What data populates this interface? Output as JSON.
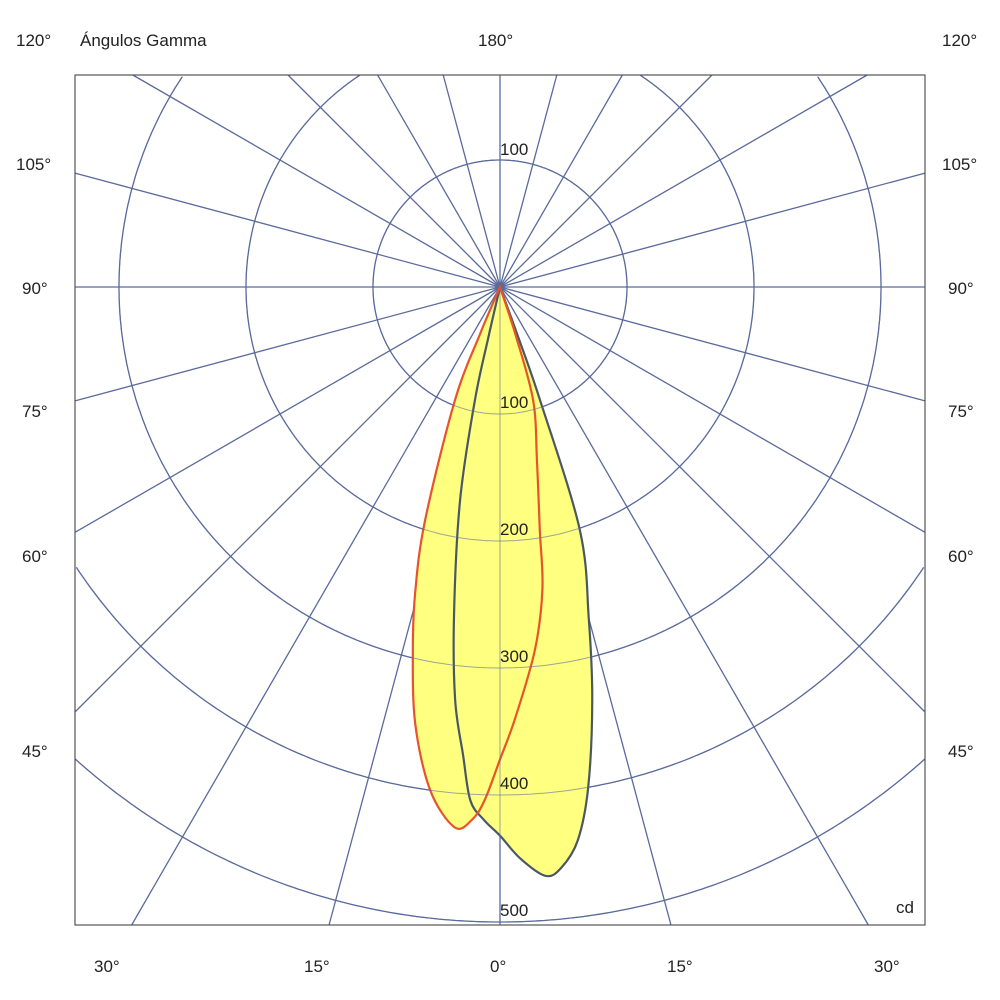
{
  "chart_data": {
    "type": "polar",
    "title": "Ángulos Gamma",
    "unit": "cd",
    "top_label": "180°",
    "radial_ticks": [
      100,
      200,
      300,
      400,
      500
    ],
    "top_radial_tick": "100",
    "angle_step_deg": 15,
    "left_angle_labels": [
      "120°",
      "105°",
      "90°",
      "75°",
      "60°",
      "45°"
    ],
    "right_angle_labels": [
      "120°",
      "105°",
      "90°",
      "75°",
      "60°",
      "45°"
    ],
    "bottom_angle_labels": [
      "30°",
      "15°",
      "0°",
      "15°",
      "30°"
    ],
    "grid": true,
    "colors": {
      "grid": "#5a6a9c",
      "fill": "#ffff80",
      "curve_a": "#4a5866",
      "curve_b": "#e8542a"
    },
    "series": [
      {
        "color": "#4a5866",
        "points": [
          [
            -13,
            40
          ],
          [
            -12.5,
            91
          ],
          [
            -10.6,
            171
          ],
          [
            -8,
            260
          ],
          [
            -6.2,
            327
          ],
          [
            -4.5,
            370
          ],
          [
            -3.3,
            405
          ],
          [
            -1.7,
            420
          ],
          [
            0,
            432
          ],
          [
            2,
            450
          ],
          [
            4.4,
            465
          ],
          [
            6,
            460
          ],
          [
            8,
            440
          ],
          [
            10,
            400
          ],
          [
            12.6,
            333
          ],
          [
            15,
            270
          ],
          [
            18.2,
            201
          ],
          [
            19.5,
            94
          ],
          [
            20,
            40
          ]
        ]
      },
      {
        "color": "#e8542a",
        "points": [
          [
            -23,
            40
          ],
          [
            -21.7,
            96
          ],
          [
            -17.8,
            193
          ],
          [
            -15.5,
            250
          ],
          [
            -13.5,
            294
          ],
          [
            -11,
            350
          ],
          [
            -7.9,
            400
          ],
          [
            -4.8,
            427
          ],
          [
            -3,
            420
          ],
          [
            -1.7,
            404
          ],
          [
            0,
            372
          ],
          [
            2,
            340
          ],
          [
            5.5,
            287
          ],
          [
            8,
            240
          ],
          [
            9.3,
            194
          ],
          [
            12,
            140
          ],
          [
            16.3,
            93
          ],
          [
            18,
            40
          ]
        ]
      }
    ]
  }
}
